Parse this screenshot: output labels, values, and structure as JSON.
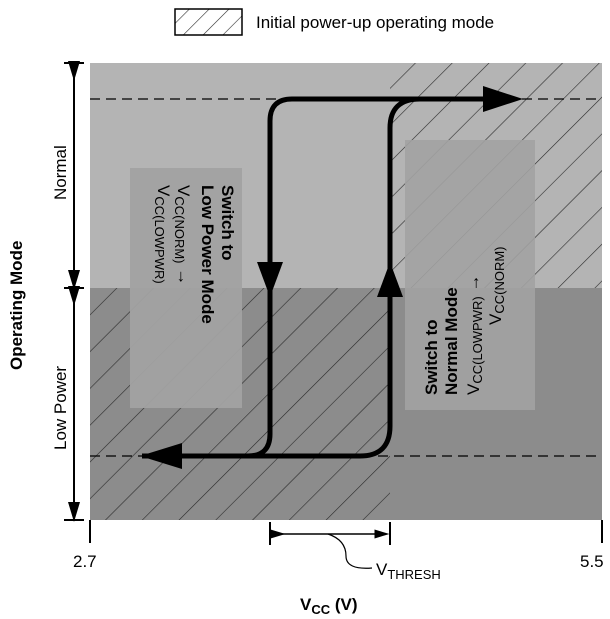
{
  "legend": {
    "label": "Initial power-up operating mode"
  },
  "y_axis": {
    "title": "Operating Mode",
    "levels": [
      "Normal",
      "Low Power"
    ]
  },
  "x_axis": {
    "title": "V",
    "title_sub": "CC",
    "title_unit": "(V)",
    "min_label": "2.7",
    "max_label": "5.5",
    "thresh_main": "V",
    "thresh_sub": "THRESH"
  },
  "transition_down": {
    "line1": "Switch to",
    "line2": "Low Power Mode",
    "from_main": "V",
    "from_sub": "CC(NORM)",
    "arrow": "→",
    "to_main": "V",
    "to_sub": "CC(LOWPWR)"
  },
  "transition_up": {
    "line1": "Switch to",
    "line2": "Normal Mode",
    "from_main": "V",
    "from_sub": "CC(LOWPWR)",
    "arrow": "→",
    "to_main": "V",
    "to_sub": "CC(NORM)"
  },
  "colors": {
    "normal_region": "#b4b4b4",
    "low_region": "#8c8c8c",
    "hatch": "#2a2a2a",
    "path": "#000000"
  }
}
